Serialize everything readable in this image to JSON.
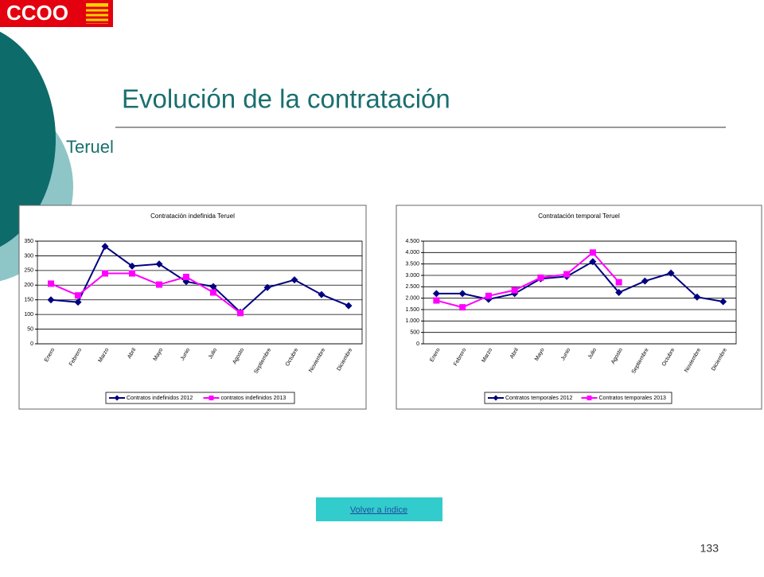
{
  "logo": "CCOO",
  "title": "Evolución de la contratación",
  "subtitle": "Teruel",
  "link": "Volver a índice",
  "page_number": "133",
  "chart_data": [
    {
      "type": "line",
      "title": "Contratación indefinida Teruel",
      "categories": [
        "Enero",
        "Febrero",
        "Marzo",
        "Abril",
        "Mayo",
        "Junio",
        "Julio",
        "Agosto",
        "Septiembre",
        "Octubre",
        "Noviembre",
        "Diciembre"
      ],
      "series": [
        {
          "name": "Contratos indefinidos 2012",
          "color": "#000080",
          "marker": "diamond",
          "values": [
            150,
            142,
            332,
            265,
            272,
            212,
            195,
            108,
            192,
            218,
            168,
            130
          ]
        },
        {
          "name": "contratos indefinidos 2013",
          "color": "#ff00ff",
          "marker": "square",
          "values": [
            205,
            165,
            240,
            240,
            202,
            228,
            175,
            105,
            null,
            null,
            null,
            null
          ]
        }
      ],
      "ylim": [
        0,
        350
      ],
      "yticks": [
        0,
        50,
        100,
        150,
        200,
        250,
        300,
        350
      ],
      "grid": true,
      "legend": "bottom"
    },
    {
      "type": "line",
      "title": "Contratación temporal Teruel",
      "categories": [
        "Enero",
        "Febrero",
        "Marzo",
        "Abril",
        "Mayo",
        "Junio",
        "Julio",
        "Agosto",
        "Septiembre",
        "Octubre",
        "Noviembre",
        "Diciembre"
      ],
      "series": [
        {
          "name": "Contratos temporales 2012",
          "color": "#000080",
          "marker": "diamond",
          "values": [
            2200,
            2200,
            1950,
            2200,
            2850,
            2950,
            3600,
            2250,
            2750,
            3100,
            2050,
            1850
          ]
        },
        {
          "name": "Contratos temporales 2013",
          "color": "#ff00ff",
          "marker": "square",
          "values": [
            1900,
            1600,
            2100,
            2350,
            2900,
            3050,
            4000,
            2700,
            null,
            null,
            null,
            null
          ]
        }
      ],
      "ylim": [
        0,
        4500
      ],
      "yticks": [
        0,
        500,
        {
          "value": 1000,
          "label": "1.000"
        },
        {
          "value": 1500,
          "label": "1.500"
        },
        {
          "value": 2000,
          "label": "2.000"
        },
        {
          "value": 2500,
          "label": "2.500"
        },
        {
          "value": 3000,
          "label": "3.000"
        },
        {
          "value": 3500,
          "label": "3.500"
        },
        {
          "value": 4000,
          "label": "4.000"
        },
        {
          "value": 4500,
          "label": "4.500"
        }
      ],
      "grid": true,
      "legend": "bottom"
    }
  ]
}
